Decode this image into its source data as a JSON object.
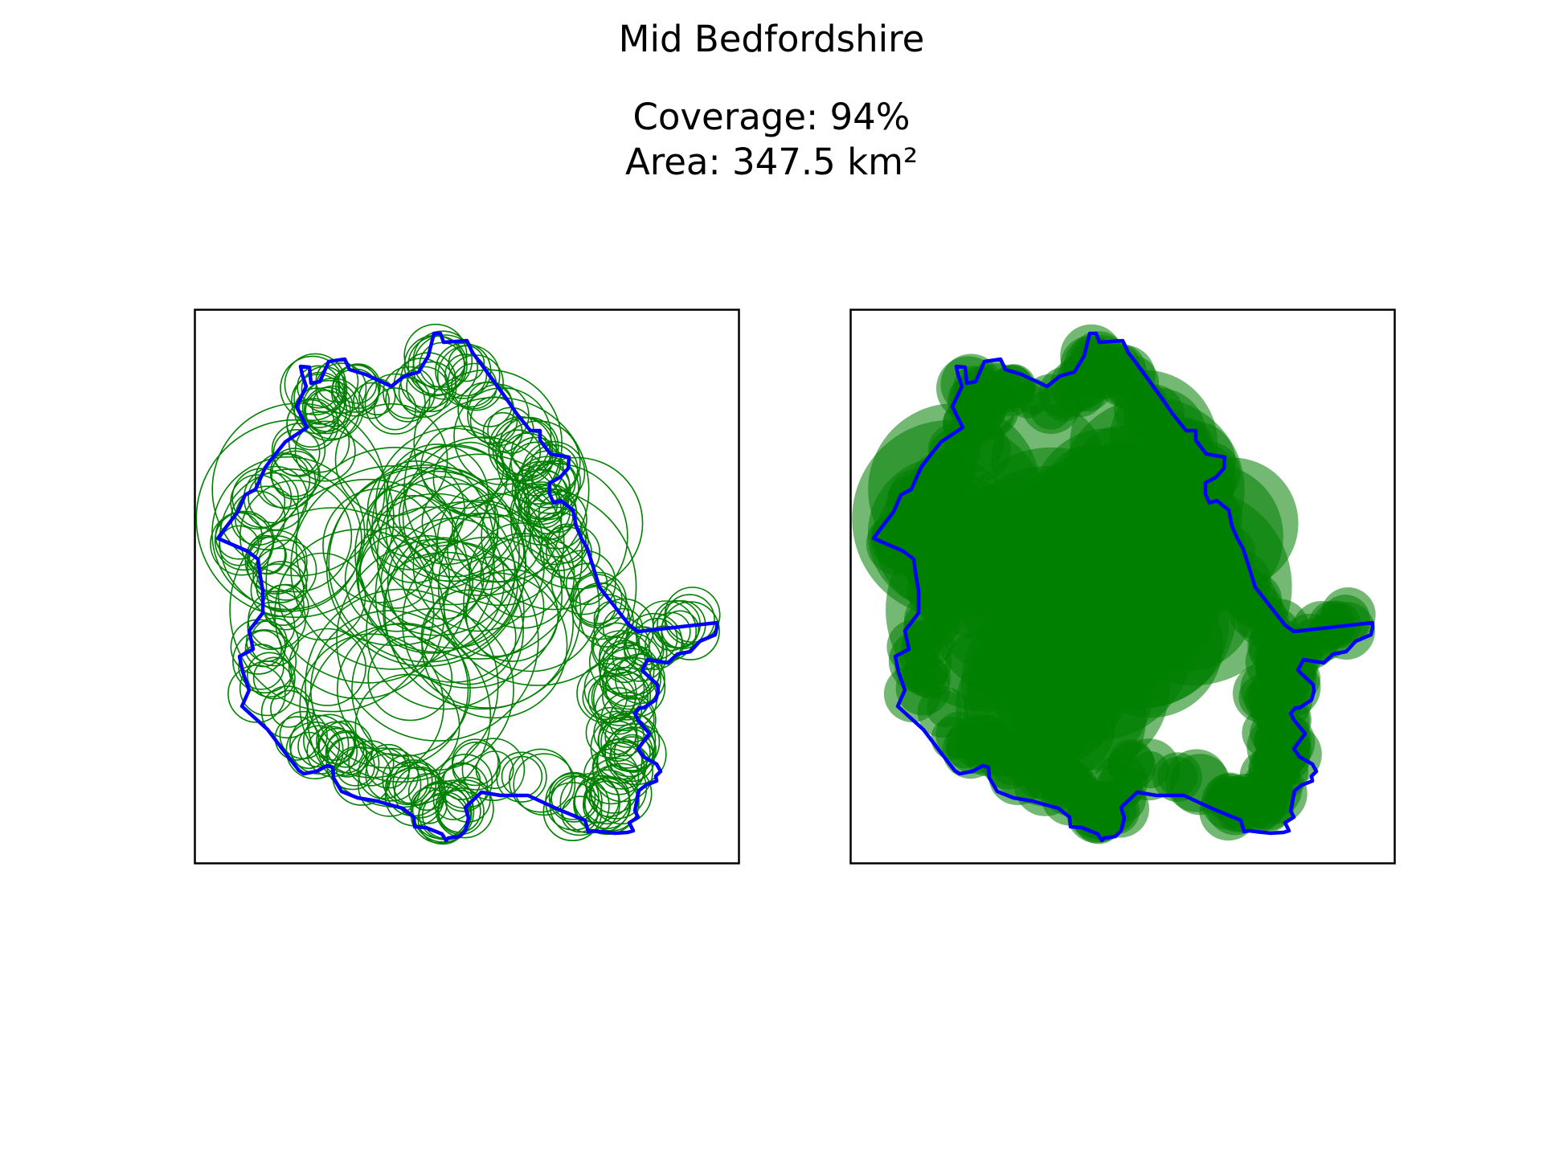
{
  "figure": {
    "title": "Mid Bedfordshire",
    "coverage_line": "Coverage: 94%",
    "area_line": "Area: 347.5 km²"
  },
  "colors": {
    "boundary": "#0000ff",
    "circles": "#008000",
    "fill": "#008000",
    "frame": "#000000"
  },
  "panels": [
    {
      "name": "circle-outlines",
      "style": "outline"
    },
    {
      "name": "filled-coverage",
      "style": "filled"
    }
  ]
}
